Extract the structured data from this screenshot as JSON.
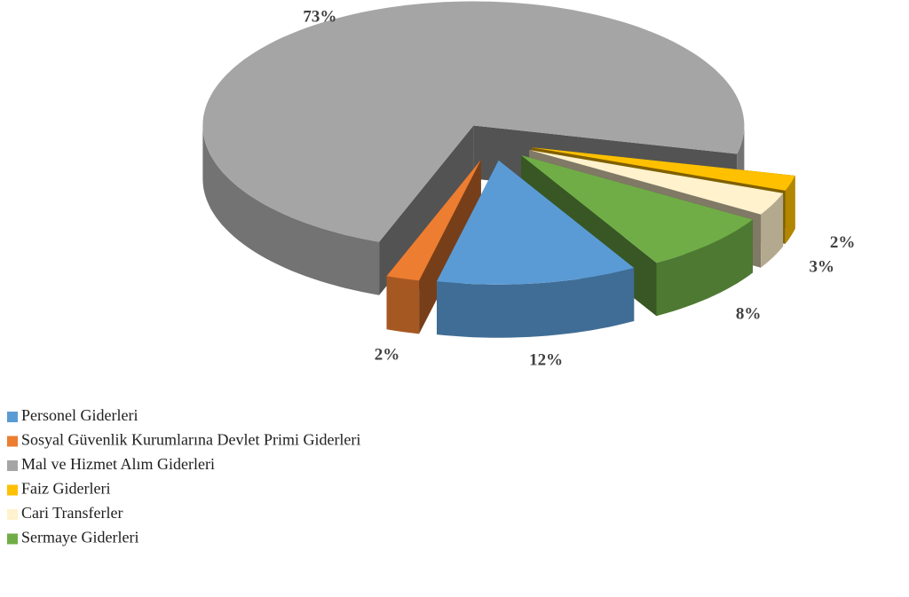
{
  "chart_data": {
    "type": "pie",
    "categories": [
      "Personel Giderleri",
      "Sosyal Güvenlik Kurumlarına Devlet Primi Giderleri",
      "Mal ve Hizmet Alım Giderleri",
      "Faiz Giderleri",
      "Cari Transferler",
      "Sermaye Giderleri"
    ],
    "values": [
      12,
      2,
      73,
      2,
      3,
      8
    ],
    "value_labels": [
      "12%",
      "2%",
      "73%",
      "2%",
      "3%",
      "8%"
    ],
    "colors": [
      "#5b9bd5",
      "#ed7d31",
      "#a5a5a5",
      "#ffc000",
      "#fff2cc",
      "#70ad47"
    ],
    "legend": "bottom-left"
  }
}
